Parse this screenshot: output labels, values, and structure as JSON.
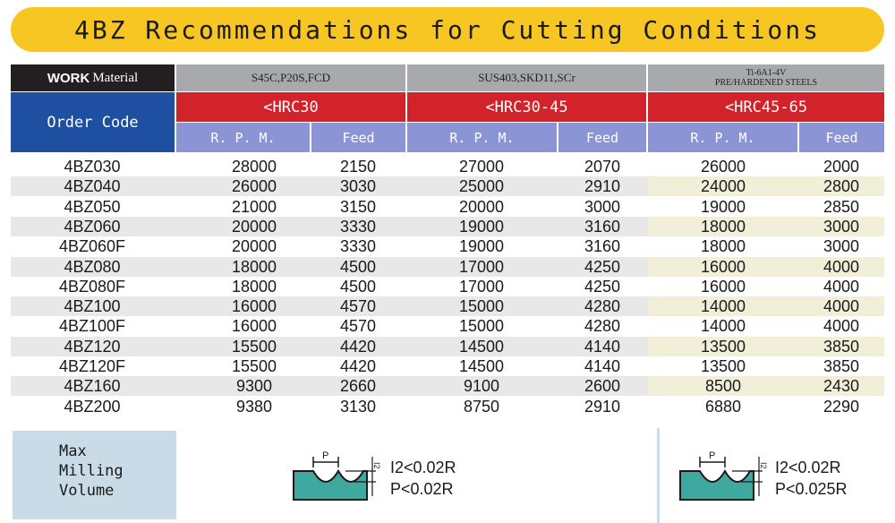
{
  "title": "4BZ Recommendations for Cutting Conditions",
  "header": {
    "work_bold": "WORK",
    "work_normal": "Material",
    "order_code": "Order Code",
    "materials": [
      "S45C,P20S,FCD",
      "SUS403,SKD11,SCr",
      "Ti-6A1-4V",
      "PRE/HARDENED STEELS"
    ],
    "hardness": [
      "<HRC30",
      "<HRC30-45",
      "<HRC45-65"
    ],
    "rpm_label": "R. P. M.",
    "feed_label": "Feed"
  },
  "table": {
    "rows": [
      [
        "4BZ030",
        "28000",
        "2150",
        "27000",
        "2070",
        "26000",
        "2000"
      ],
      [
        "4BZ040",
        "26000",
        "3030",
        "25000",
        "2910",
        "24000",
        "2800"
      ],
      [
        "4BZ050",
        "21000",
        "3150",
        "20000",
        "3000",
        "19000",
        "2850"
      ],
      [
        "4BZ060",
        "20000",
        "3330",
        "19000",
        "3160",
        "18000",
        "3000"
      ],
      [
        "4BZ060F",
        "20000",
        "3330",
        "19000",
        "3160",
        "18000",
        "3000"
      ],
      [
        "4BZ080",
        "18000",
        "4500",
        "17000",
        "4250",
        "16000",
        "4000"
      ],
      [
        "4BZ080F",
        "18000",
        "4500",
        "17000",
        "4250",
        "16000",
        "4000"
      ],
      [
        "4BZ100",
        "16000",
        "4570",
        "15000",
        "4280",
        "14000",
        "4000"
      ],
      [
        "4BZ100F",
        "16000",
        "4570",
        "15000",
        "4280",
        "14000",
        "4000"
      ],
      [
        "4BZ120",
        "15500",
        "4420",
        "14500",
        "4140",
        "13500",
        "3850"
      ],
      [
        "4BZ120F",
        "15500",
        "4420",
        "14500",
        "4140",
        "13500",
        "3850"
      ],
      [
        "4BZ160",
        "9300",
        "2660",
        "9100",
        "2600",
        "8500",
        "2430"
      ],
      [
        "4BZ200",
        "9380",
        "3130",
        "8750",
        "2910",
        "6880",
        "2290"
      ]
    ]
  },
  "footer": {
    "max_milling": "Max\nMilling\nVolume",
    "diagram_p": "P",
    "diagram_i2": "I2",
    "spec1_a": "I2<0.02R",
    "spec1_b": "P<0.02R",
    "spec2_a": "I2<0.02R",
    "spec2_b": "P<0.025R"
  },
  "colors": {
    "title_bar": "#f8c623",
    "header_black": "#231f20",
    "header_blue": "#1e4fa0",
    "header_red": "#d2232a",
    "header_lavender": "#8b94d4",
    "header_gray": "#a7a9ac",
    "row_shade": "#e8e8e9",
    "row_highlight": "#f2efd9",
    "footer_box": "#c9dbe6"
  }
}
